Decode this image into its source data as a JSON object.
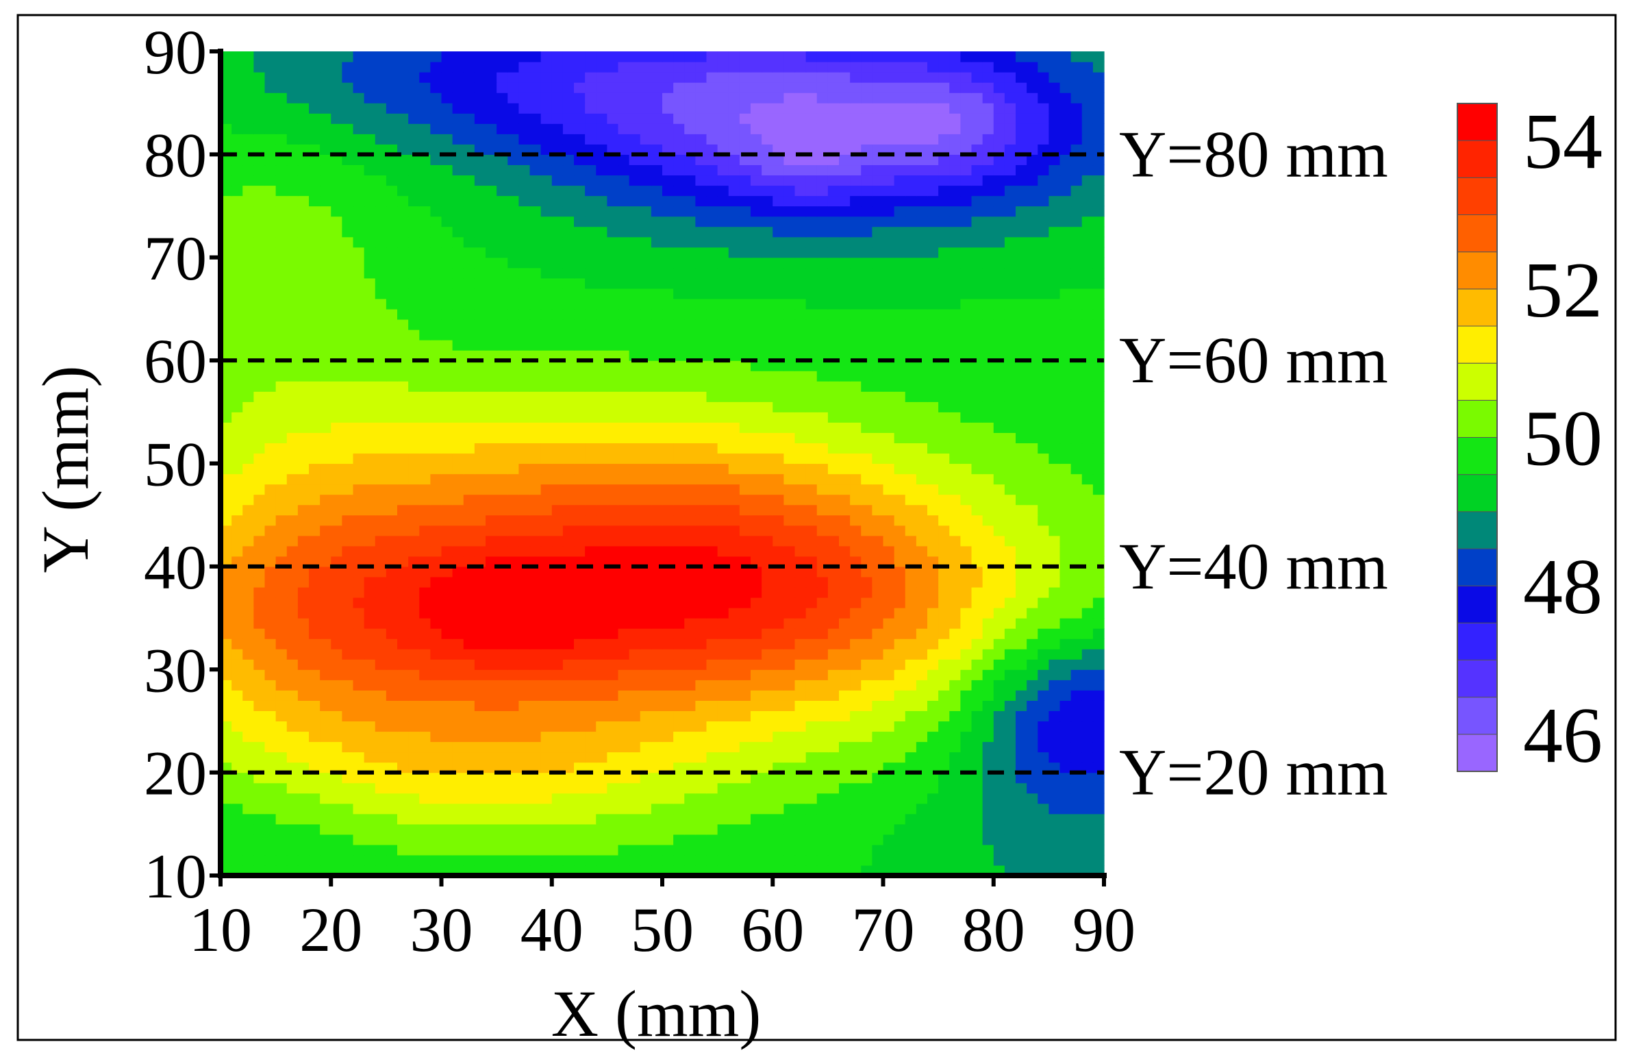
{
  "chart_data": {
    "type": "heatmap",
    "title": "",
    "xlabel": "X (mm)",
    "ylabel": "Y (mm)",
    "xlim": [
      10,
      90
    ],
    "ylim": [
      10,
      90
    ],
    "x_ticks": [
      "10",
      "20",
      "30",
      "40",
      "50",
      "60",
      "70",
      "80",
      "90"
    ],
    "y_ticks": [
      "10",
      "20",
      "30",
      "40",
      "50",
      "60",
      "70",
      "80",
      "90"
    ],
    "grid": false,
    "reference_lines": [
      {
        "y": 80,
        "label": "Y=80 mm"
      },
      {
        "y": 60,
        "label": "Y=60 mm"
      },
      {
        "y": 40,
        "label": "Y=40 mm"
      },
      {
        "y": 20,
        "label": "Y=20 mm"
      }
    ],
    "colorbar": {
      "placement": "right",
      "range": [
        45.5,
        54.5
      ],
      "ticks": [
        "54",
        "52",
        "50",
        "48",
        "46"
      ],
      "levels": [
        {
          "from": 45.5,
          "to": 46.0,
          "color": "#9966ff"
        },
        {
          "from": 46.0,
          "to": 46.5,
          "color": "#7755ff"
        },
        {
          "from": 46.5,
          "to": 47.0,
          "color": "#5533ff"
        },
        {
          "from": 47.0,
          "to": 47.5,
          "color": "#3322ff"
        },
        {
          "from": 47.5,
          "to": 48.0,
          "color": "#0a0ae6"
        },
        {
          "from": 48.0,
          "to": 48.5,
          "color": "#0040c8"
        },
        {
          "from": 48.5,
          "to": 49.0,
          "color": "#008878"
        },
        {
          "from": 49.0,
          "to": 49.5,
          "color": "#00d224"
        },
        {
          "from": 49.5,
          "to": 50.0,
          "color": "#14e614"
        },
        {
          "from": 50.0,
          "to": 50.5,
          "color": "#7afa00"
        },
        {
          "from": 50.5,
          "to": 51.0,
          "color": "#ccff00"
        },
        {
          "from": 51.0,
          "to": 51.5,
          "color": "#ffee00"
        },
        {
          "from": 51.5,
          "to": 52.0,
          "color": "#ffbb00"
        },
        {
          "from": 52.0,
          "to": 52.5,
          "color": "#ff8c00"
        },
        {
          "from": 52.5,
          "to": 53.0,
          "color": "#ff6000"
        },
        {
          "from": 53.0,
          "to": 53.5,
          "color": "#ff4000"
        },
        {
          "from": 53.5,
          "to": 54.0,
          "color": "#ff2400"
        },
        {
          "from": 54.0,
          "to": 54.5,
          "color": "#ff0000"
        }
      ]
    },
    "field": {
      "base_value": 49.6,
      "features": [
        {
          "x": 40,
          "y": 36,
          "sx": 24,
          "sy": 9,
          "amp": 3.9
        },
        {
          "x": 36,
          "y": 35,
          "sx": 5,
          "sy": 3.5,
          "amp": 0.9
        },
        {
          "x": 55,
          "y": 42,
          "sx": 15,
          "sy": 7,
          "amp": 1.1
        },
        {
          "x": 18,
          "y": 38,
          "sx": 10,
          "sy": 14,
          "amp": 0.9
        },
        {
          "x": 68,
          "y": 38,
          "sx": 13,
          "sy": 8,
          "amp": 0.9
        },
        {
          "x": 35,
          "y": 20,
          "sx": 14,
          "sy": 5,
          "amp": 1.1
        },
        {
          "x": 42,
          "y": 52,
          "sx": 18,
          "sy": 6,
          "amp": 0.8
        },
        {
          "x": 65,
          "y": 83,
          "sx": 18,
          "sy": 7,
          "amp": -3.4
        },
        {
          "x": 77,
          "y": 83,
          "sx": 5,
          "sy": 4,
          "amp": -0.8
        },
        {
          "x": 63,
          "y": 79,
          "sx": 4,
          "sy": 3,
          "amp": -0.6
        },
        {
          "x": 35,
          "y": 88,
          "sx": 18,
          "sy": 5,
          "amp": -1.4
        },
        {
          "x": 88,
          "y": 25,
          "sx": 7,
          "sy": 6,
          "amp": -2.3
        },
        {
          "x": 15,
          "y": 70,
          "sx": 8,
          "sy": 10,
          "amp": 0.6
        },
        {
          "x": 15,
          "y": 14,
          "sx": 8,
          "sy": 5,
          "amp": -0.3
        },
        {
          "x": 85,
          "y": 12,
          "sx": 10,
          "sy": 5,
          "amp": -0.6
        }
      ]
    }
  }
}
